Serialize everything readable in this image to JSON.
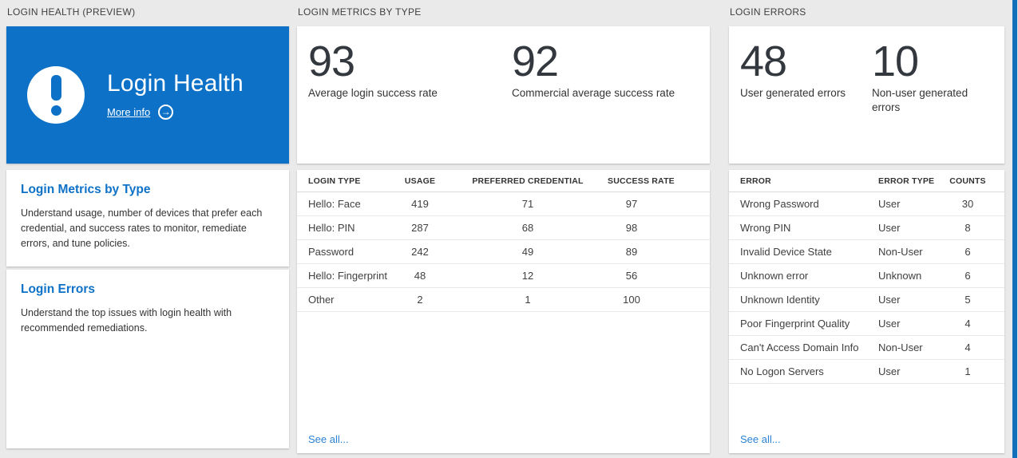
{
  "page": {
    "accent_blue": "#0d72c7",
    "link_blue": "#2a82d4",
    "background": "#eaeaea"
  },
  "health": {
    "section_title": "LOGIN HEALTH (PREVIEW)",
    "hero": {
      "title": "Login Health",
      "more_info_label": "More info",
      "icon": "exclamation-icon",
      "arrow_icon": "arrow-right-icon"
    },
    "cards": [
      {
        "title": "Login Metrics by Type",
        "description": "Understand usage, number of devices that prefer each credential, and success rates to monitor, remediate errors, and tune policies."
      },
      {
        "title": "Login Errors",
        "description": "Understand the top issues with login health with recommended remediations."
      }
    ]
  },
  "metrics": {
    "section_title": "LOGIN METRICS BY TYPE",
    "stats": [
      {
        "value": "93",
        "label": "Average login success rate"
      },
      {
        "value": "92",
        "label": "Commercial average success rate"
      }
    ],
    "table": {
      "headers": [
        "LOGIN TYPE",
        "USAGE",
        "PREFERRED CREDENTIAL",
        "SUCCESS RATE"
      ],
      "rows": [
        [
          "Hello: Face",
          "419",
          "71",
          "97"
        ],
        [
          "Hello: PIN",
          "287",
          "68",
          "98"
        ],
        [
          "Password",
          "242",
          "49",
          "89"
        ],
        [
          "Hello: Fingerprint",
          "48",
          "12",
          "56"
        ],
        [
          "Other",
          "2",
          "1",
          "100"
        ]
      ],
      "see_all_label": "See all..."
    }
  },
  "errors": {
    "section_title": "LOGIN ERRORS",
    "stats": [
      {
        "value": "48",
        "label": "User generated errors"
      },
      {
        "value": "10",
        "label": "Non-user generated errors"
      }
    ],
    "table": {
      "headers": [
        "ERROR",
        "ERROR TYPE",
        "COUNTS"
      ],
      "rows": [
        [
          "Wrong Password",
          "User",
          "30"
        ],
        [
          "Wrong PIN",
          "User",
          "8"
        ],
        [
          "Invalid Device State",
          "Non-User",
          "6"
        ],
        [
          "Unknown error",
          "Unknown",
          "6"
        ],
        [
          "Unknown Identity",
          "User",
          "5"
        ],
        [
          "Poor Fingerprint Quality",
          "User",
          "4"
        ],
        [
          "Can't Access Domain Info",
          "Non-User",
          "4"
        ],
        [
          "No Logon Servers",
          "User",
          "1"
        ]
      ],
      "see_all_label": "See all..."
    }
  }
}
